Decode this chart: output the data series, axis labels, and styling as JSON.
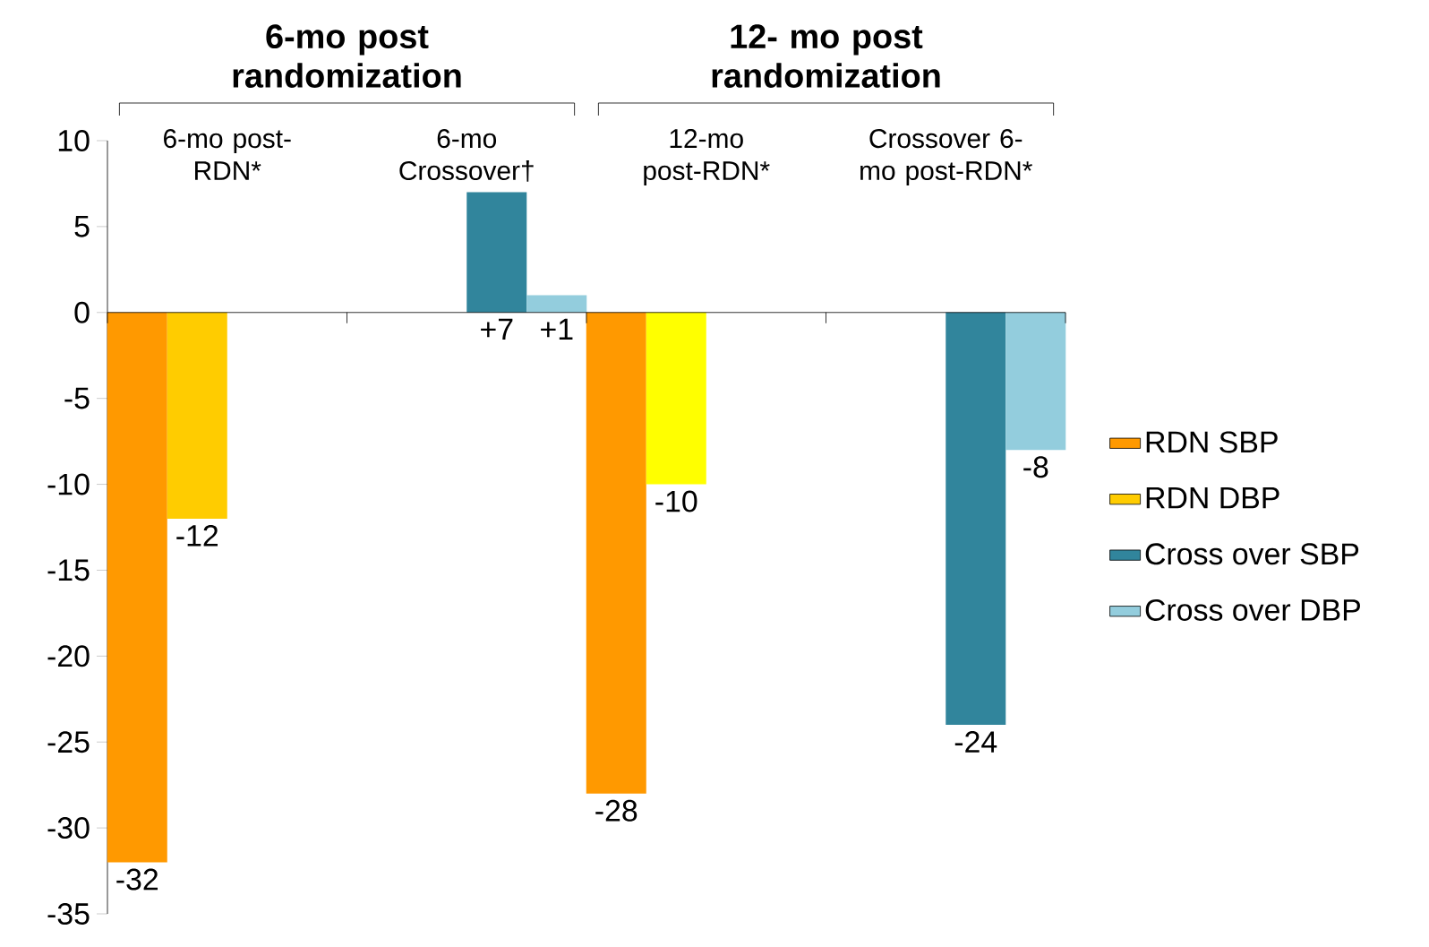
{
  "chart_data": {
    "type": "bar",
    "categories": [
      "6-mo post-RDN*",
      "6-mo Crossover†",
      "12-mo post-RDN*",
      "Crossover 6-mo post-RDN*"
    ],
    "series": [
      {
        "name": "RDN SBP",
        "color": "#ff9900",
        "values": [
          -32,
          null,
          -28,
          null
        ],
        "value_labels": [
          "-32",
          null,
          "-28",
          null
        ]
      },
      {
        "name": "RDN DBP",
        "color": "#ffcc00",
        "colors": [
          "#ffcc00",
          null,
          "#ffff00",
          null
        ],
        "values": [
          -12,
          null,
          -10,
          null
        ],
        "value_labels": [
          "-12",
          null,
          "-10",
          null
        ]
      },
      {
        "name": "Cross over SBP",
        "color": "#31859c",
        "values": [
          null,
          7,
          null,
          -24
        ],
        "value_labels": [
          null,
          "+7",
          null,
          "-24"
        ]
      },
      {
        "name": "Cross over DBP",
        "color": "#93cddd",
        "values": [
          null,
          1,
          null,
          -8
        ],
        "value_labels": [
          null,
          "+1",
          null,
          "-8"
        ]
      }
    ],
    "annotations": [
      "6-mo post randomization",
      "12- mo post randomization"
    ],
    "ylim": [
      -35,
      10
    ],
    "yticks": [
      -35,
      -30,
      -25,
      -20,
      -15,
      -10,
      -5,
      0,
      5,
      10
    ],
    "legend": "right"
  }
}
